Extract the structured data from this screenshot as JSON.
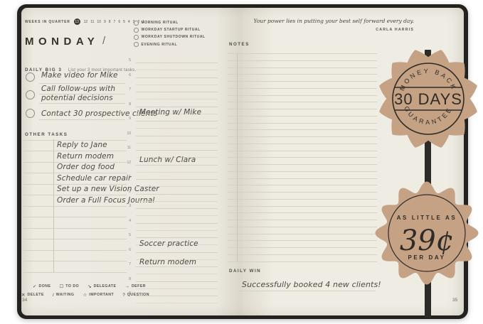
{
  "colors": {
    "badge_tan": "#C6A284",
    "badge_ink": "#2F2C28",
    "page_cream": "#EDEAE2",
    "cover_black": "#23221E",
    "rule_line": "#D5D1C4",
    "handwriting_ink": "#4D4B43"
  },
  "left_page": {
    "weeks_label": "WEEKS IN QUARTER",
    "weeks_current": "13",
    "weeks_numbers": [
      "12",
      "11",
      "10",
      "9",
      "8",
      "7",
      "6",
      "5",
      "4",
      "3",
      "2",
      "1"
    ],
    "day_title": "MONDAY",
    "date_separator": "/",
    "daily_big3_label": "DAILY BIG 3",
    "daily_big3_hint": "List your 3 most important tasks.",
    "big3": {
      "task1": "Make video for Mike",
      "task2_line1": "Call follow-ups with",
      "task2_line2": "potential decisions",
      "task3": "Contact 30 prospective clients"
    },
    "other_tasks_label": "OTHER TASKS",
    "other_tasks": [
      "Reply to Jane",
      "Return modem",
      "Order dog food",
      "Schedule car repair",
      "Set up a new Vision Caster",
      "Order a Full Focus Journal"
    ],
    "legend": [
      {
        "symbol": "✓",
        "label": "DONE"
      },
      {
        "symbol": "☐",
        "label": "TO DO"
      },
      {
        "symbol": "↘",
        "label": "DELEGATE"
      },
      {
        "symbol": "→",
        "label": "DEFER"
      },
      {
        "symbol": "✕",
        "label": "DELETE"
      },
      {
        "symbol": "/",
        "label": "WAITING"
      },
      {
        "symbol": "☆",
        "label": "IMPORTANT"
      },
      {
        "symbol": "?",
        "label": "QUESTION"
      }
    ],
    "page_number": "34"
  },
  "rituals": [
    "MORNING RITUAL",
    "WORKDAY STARTUP RITUAL",
    "WORKDAY SHUTDOWN RITUAL",
    "EVENING RITUAL"
  ],
  "schedule": {
    "hours": [
      "5",
      "6",
      "7",
      "8",
      "9",
      "10",
      "11",
      "12",
      "1",
      "2",
      "3",
      "4",
      "5",
      "6",
      "7",
      "8",
      "9"
    ],
    "entries": [
      {
        "hour_index": 3,
        "text": "Meeting w/ Mike",
        "placement": "below"
      },
      {
        "hour_index": 7,
        "text": "Lunch w/ Clara",
        "placement": "above"
      },
      {
        "hour_index": 12,
        "text": "Soccer practice",
        "placement": "below"
      },
      {
        "hour_index": 14,
        "text": "Return modem",
        "placement": "above"
      }
    ]
  },
  "right_page": {
    "quote": "Your power lies in putting your best self forward every day.",
    "quote_author": "CARLA HARRIS",
    "notes_label": "NOTES",
    "daily_win_label": "DAILY WIN",
    "daily_win_text": "Successfully booked 4 new clients!",
    "page_number": "35"
  },
  "badges": {
    "money_back": {
      "top_arc": "MONEY BACK",
      "center": "30 DAYS",
      "bottom_arc": "GUARANTEE"
    },
    "price": {
      "top": "AS LITTLE AS",
      "amount": "39¢",
      "bottom": "PER DAY"
    }
  }
}
